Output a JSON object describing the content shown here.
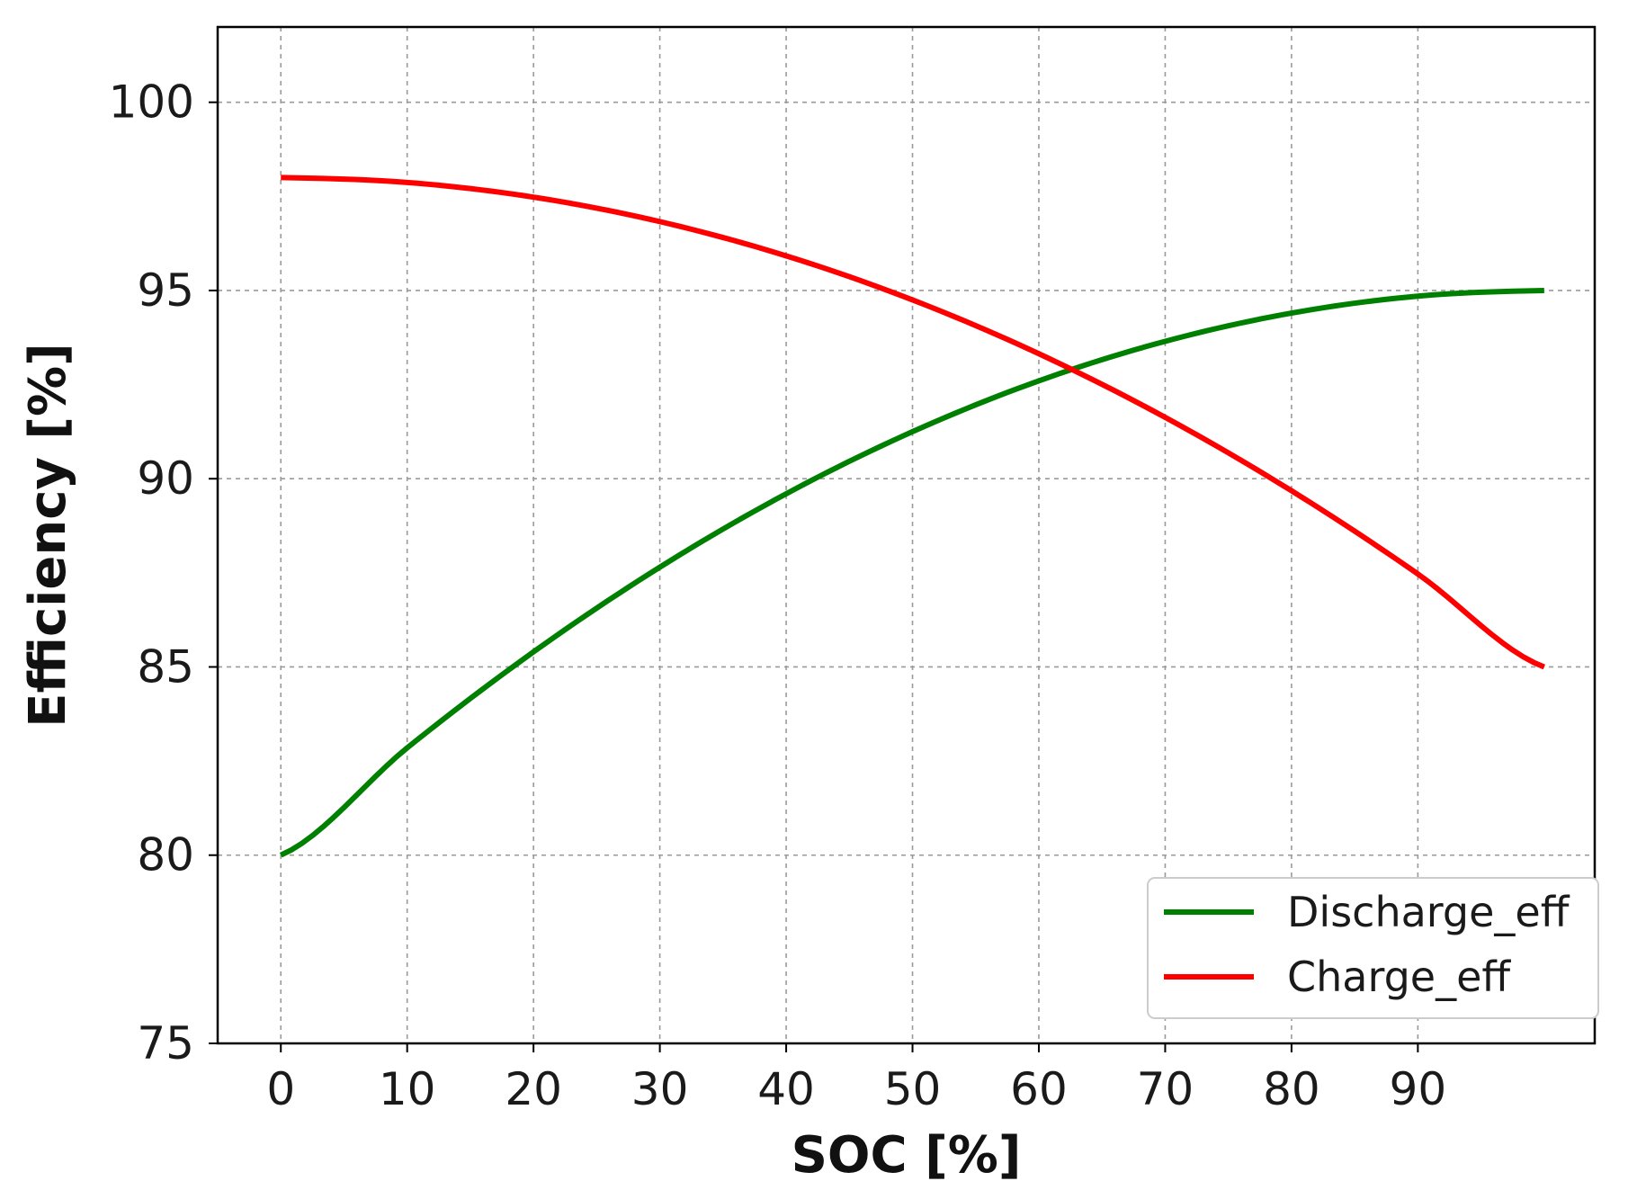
{
  "chart_data": {
    "type": "line",
    "title": "",
    "xlabel": "SOC [%]",
    "ylabel": "Efficiency [%]",
    "xlim": [
      -5,
      104
    ],
    "ylim": [
      75,
      102
    ],
    "x_ticks": [
      0,
      10,
      20,
      30,
      40,
      50,
      60,
      70,
      80,
      90
    ],
    "x_tick_labels": [
      "0",
      "10",
      "20",
      "30",
      "40",
      "50",
      "60",
      "70",
      "80",
      "90"
    ],
    "y_ticks": [
      75,
      80,
      85,
      90,
      95,
      100
    ],
    "y_tick_labels": [
      "75",
      "80",
      "85",
      "90",
      "95",
      "100"
    ],
    "grid": true,
    "legend_position": "lower-right",
    "x": [
      0,
      10,
      20,
      30,
      40,
      50,
      60,
      70,
      80,
      90,
      100
    ],
    "series": [
      {
        "name": "Discharge_eff",
        "color": "#008000",
        "values": [
          80.0,
          82.85,
          85.4,
          87.65,
          89.6,
          91.25,
          92.6,
          93.65,
          94.4,
          94.85,
          95.0
        ]
      },
      {
        "name": "Charge_eff",
        "color": "#ff0000",
        "values": [
          98.0,
          97.87,
          97.48,
          96.83,
          95.92,
          94.75,
          93.32,
          91.63,
          89.68,
          87.47,
          85.0
        ]
      }
    ]
  }
}
